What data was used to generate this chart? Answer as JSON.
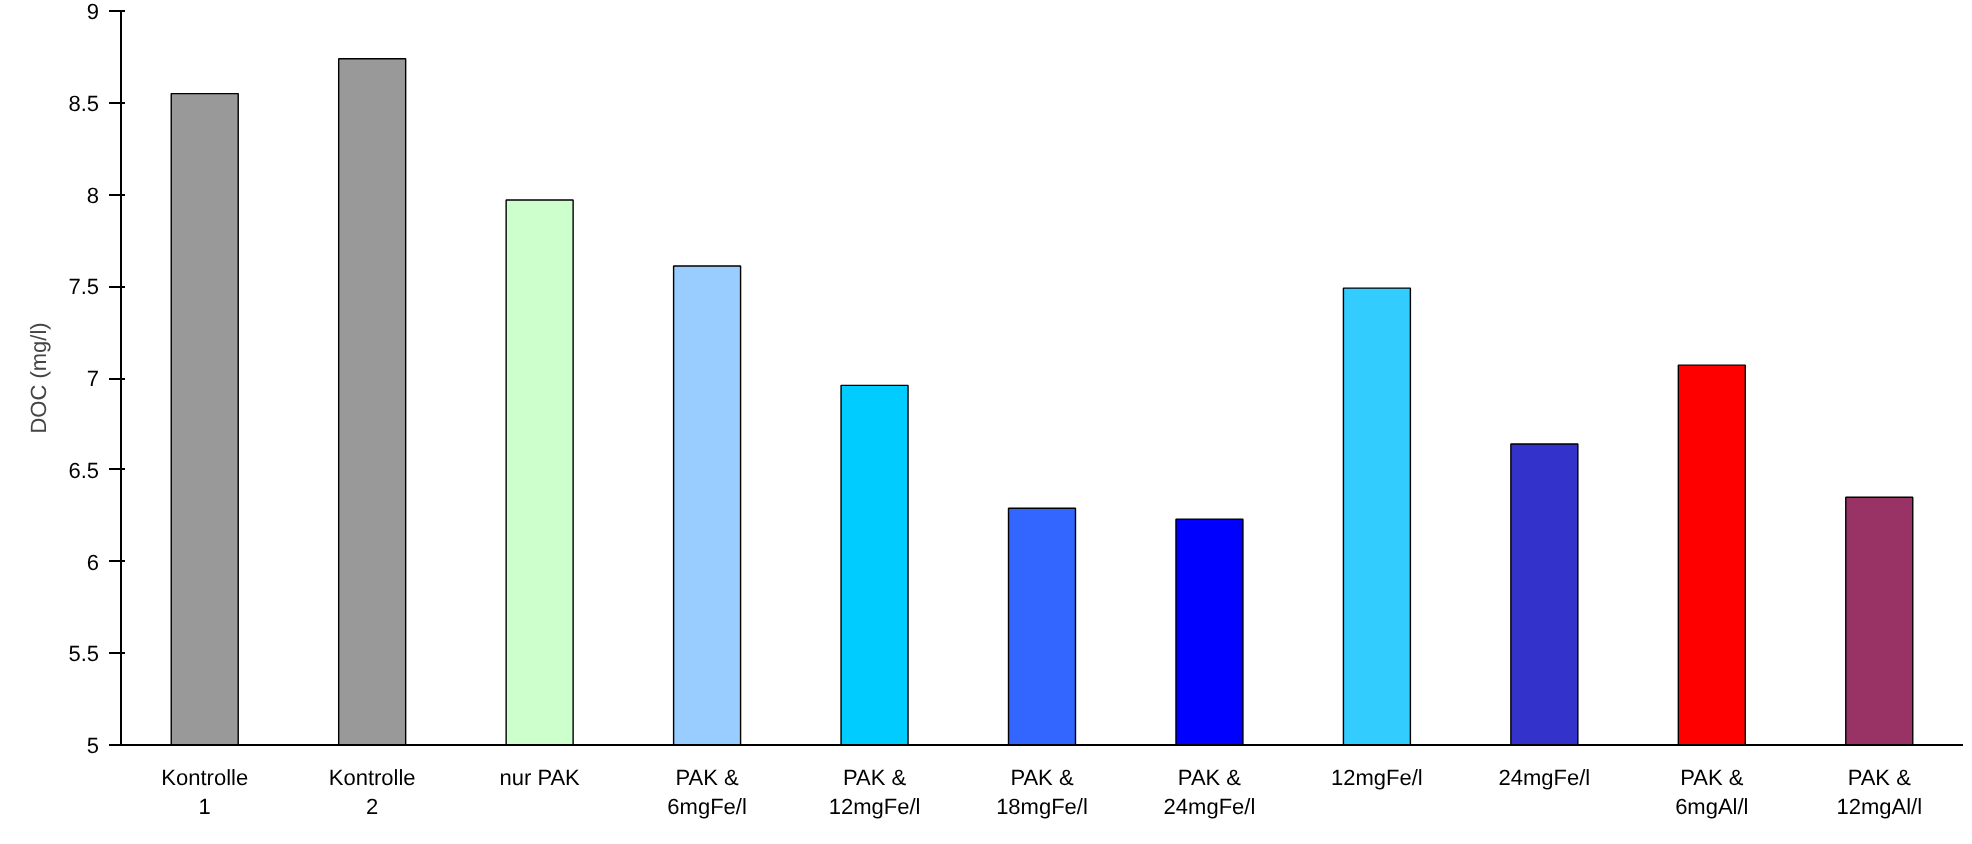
{
  "chart_data": {
    "type": "bar",
    "ylabel": "DOC (mg/l)",
    "categories": [
      "Kontrolle\n1",
      "Kontrolle\n2",
      "nur PAK",
      "PAK &\n6mgFe/l",
      "PAK &\n12mgFe/l",
      "PAK &\n18mgFe/l",
      "PAK &\n24mgFe/l",
      "12mgFe/l",
      "24mgFe/l",
      "PAK &\n6mgAl/l",
      "PAK &\n12mgAl/l"
    ],
    "values": [
      8.55,
      8.74,
      7.97,
      7.61,
      6.96,
      6.29,
      6.23,
      7.49,
      6.64,
      7.07,
      6.35
    ],
    "colors": [
      "#999999",
      "#999999",
      "#ccffcc",
      "#99ccff",
      "#00ccff",
      "#3366ff",
      "#0000ff",
      "#33ccff",
      "#3333cc",
      "#ff0000",
      "#993366"
    ],
    "ylim": [
      5,
      9
    ],
    "yticks": [
      5,
      5.5,
      6,
      6.5,
      7,
      7.5,
      8,
      8.5,
      9
    ],
    "grid": false
  }
}
